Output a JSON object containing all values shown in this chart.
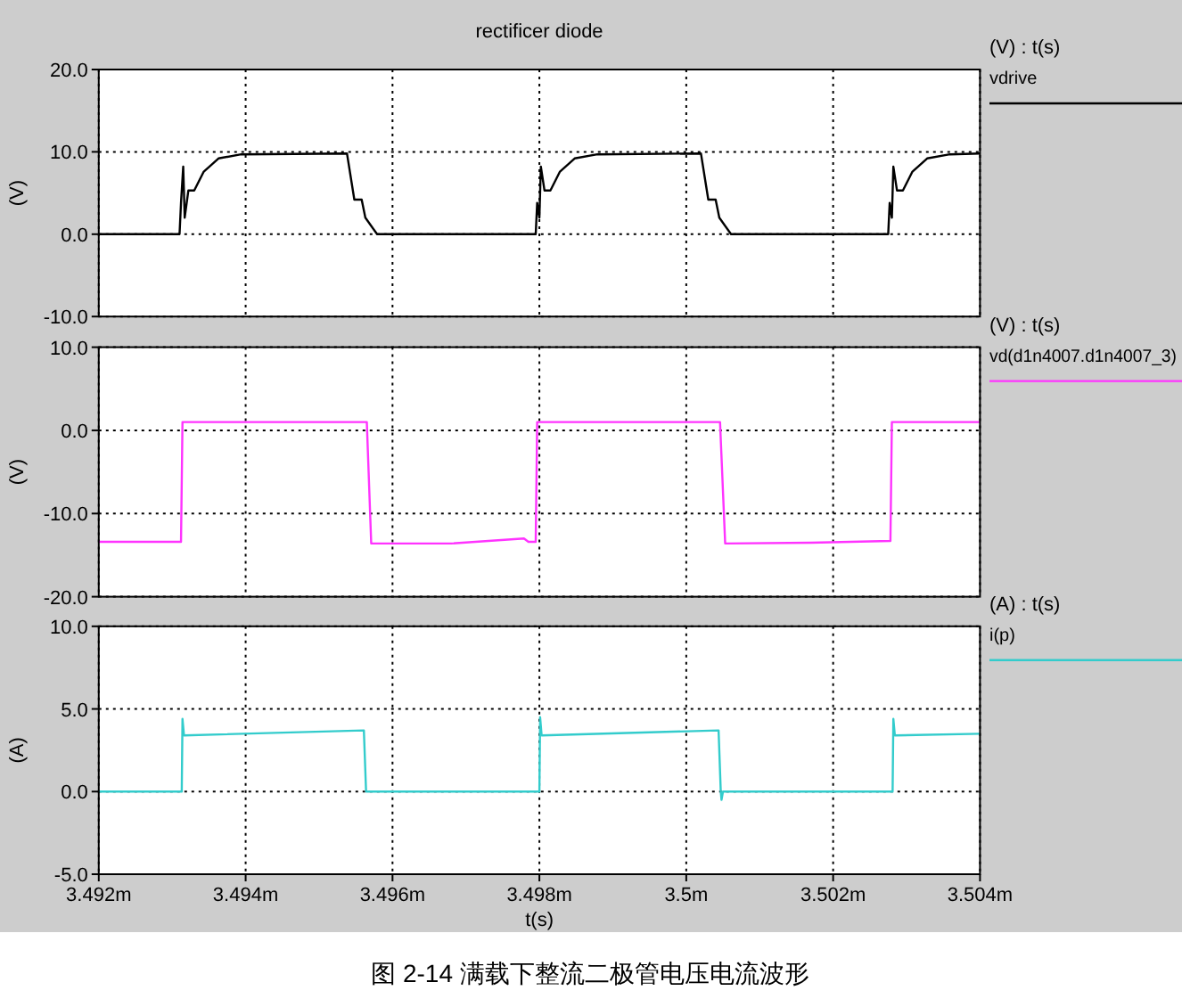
{
  "chart_data": [
    {
      "type": "line",
      "title": "rectificer diode",
      "ylabel": "(V)",
      "legend_title": "(V) : t(s)",
      "legend": "right",
      "grid": true,
      "tick_labels": "y",
      "xlim": [
        3.492,
        3.504
      ],
      "xticks": [
        {
          "value": 3.492,
          "label": null
        },
        {
          "value": 3.494,
          "label": null
        },
        {
          "value": 3.496,
          "label": null
        },
        {
          "value": 3.498,
          "label": null
        },
        {
          "value": 3.5,
          "label": null
        },
        {
          "value": 3.502,
          "label": null
        },
        {
          "value": 3.504,
          "label": null
        }
      ],
      "ylim": [
        -10,
        20
      ],
      "yticks": [
        {
          "value": -10,
          "label": "-10.0"
        },
        {
          "value": 0,
          "label": "0.0"
        },
        {
          "value": 10,
          "label": "10.0"
        },
        {
          "value": 20,
          "label": "20.0"
        }
      ],
      "series": [
        {
          "name": "vdrive",
          "color": "#000000",
          "x": [
            3.492,
            3.4931,
            3.49312,
            3.49315,
            3.49317,
            3.49322,
            3.4933,
            3.49343,
            3.49363,
            3.49394,
            3.49538,
            3.49548,
            3.49558,
            3.49563,
            3.49579,
            3.49795,
            3.49797,
            3.498,
            3.49802,
            3.49807,
            3.49815,
            3.49828,
            3.49848,
            3.49879,
            3.5002,
            3.5003,
            3.5004,
            3.50045,
            3.50061,
            3.50275,
            3.50277,
            3.5028,
            3.50282,
            3.50287,
            3.50295,
            3.50308,
            3.50328,
            3.50359,
            3.504
          ],
          "values": [
            0,
            0,
            3.8,
            8.2,
            2.0,
            5.3,
            5.3,
            7.6,
            9.2,
            9.7,
            9.8,
            4.2,
            4.2,
            2.0,
            0,
            0,
            3.8,
            2.0,
            8.2,
            5.3,
            5.3,
            7.6,
            9.2,
            9.7,
            9.8,
            4.2,
            4.2,
            2.0,
            0,
            0,
            3.8,
            2.0,
            8.2,
            5.3,
            5.3,
            7.6,
            9.2,
            9.7,
            9.8
          ]
        }
      ]
    },
    {
      "type": "line",
      "ylabel": "(V)",
      "legend_title": "(V) : t(s)",
      "legend": "right",
      "grid": true,
      "tick_labels": "y",
      "xlim": [
        3.492,
        3.504
      ],
      "xticks": [
        {
          "value": 3.492,
          "label": null
        },
        {
          "value": 3.494,
          "label": null
        },
        {
          "value": 3.496,
          "label": null
        },
        {
          "value": 3.498,
          "label": null
        },
        {
          "value": 3.5,
          "label": null
        },
        {
          "value": 3.502,
          "label": null
        },
        {
          "value": 3.504,
          "label": null
        }
      ],
      "ylim": [
        -20,
        10
      ],
      "yticks": [
        {
          "value": -20,
          "label": "-20.0"
        },
        {
          "value": -10,
          "label": "-10.0"
        },
        {
          "value": 0,
          "label": "0.0"
        },
        {
          "value": 10,
          "label": "10.0"
        }
      ],
      "series": [
        {
          "name": "vd(d1n4007.d1n4007_3)",
          "color": "#ff33ff",
          "x": [
            3.492,
            3.49312,
            3.49314,
            3.49565,
            3.49571,
            3.4968,
            3.49779,
            3.49785,
            3.49795,
            3.49797,
            3.50046,
            3.50053,
            3.5017,
            3.50278,
            3.5028,
            3.504
          ],
          "values": [
            -13.4,
            -13.4,
            1.0,
            1.0,
            -13.6,
            -13.6,
            -13.0,
            -13.4,
            -13.4,
            1.0,
            1.0,
            -13.6,
            -13.5,
            -13.3,
            1.0,
            1.0
          ]
        }
      ]
    },
    {
      "type": "line",
      "ylabel": "(A)",
      "xlabel": "t(s)",
      "legend_title": "(A) : t(s)",
      "legend": "right",
      "grid": true,
      "annotations": [
        "图 2-14 满载下整流二极管电压电流波形"
      ],
      "xlim": [
        3.492,
        3.504
      ],
      "xticks": [
        {
          "value": 3.492,
          "label": "3.492m"
        },
        {
          "value": 3.494,
          "label": "3.494m"
        },
        {
          "value": 3.496,
          "label": "3.496m"
        },
        {
          "value": 3.498,
          "label": "3.498m"
        },
        {
          "value": 3.5,
          "label": "3.5m"
        },
        {
          "value": 3.502,
          "label": "3.502m"
        },
        {
          "value": 3.504,
          "label": "3.504m"
        }
      ],
      "ylim": [
        -5,
        10
      ],
      "yticks": [
        {
          "value": -5,
          "label": "-5.0"
        },
        {
          "value": 0,
          "label": "0.0"
        },
        {
          "value": 5,
          "label": "5.0"
        },
        {
          "value": 10,
          "label": "10.0"
        }
      ],
      "series": [
        {
          "name": "i(p)",
          "color": "#33cccc",
          "x": [
            3.492,
            3.49313,
            3.49314,
            3.49316,
            3.49561,
            3.49564,
            3.498,
            3.49801,
            3.49803,
            3.50044,
            3.50047,
            3.50048,
            3.5005,
            3.50281,
            3.50282,
            3.50284,
            3.504
          ],
          "values": [
            0,
            0,
            4.4,
            3.4,
            3.7,
            0,
            0,
            4.5,
            3.4,
            3.7,
            0,
            -0.5,
            0,
            0,
            4.4,
            3.4,
            3.5
          ]
        }
      ]
    }
  ]
}
